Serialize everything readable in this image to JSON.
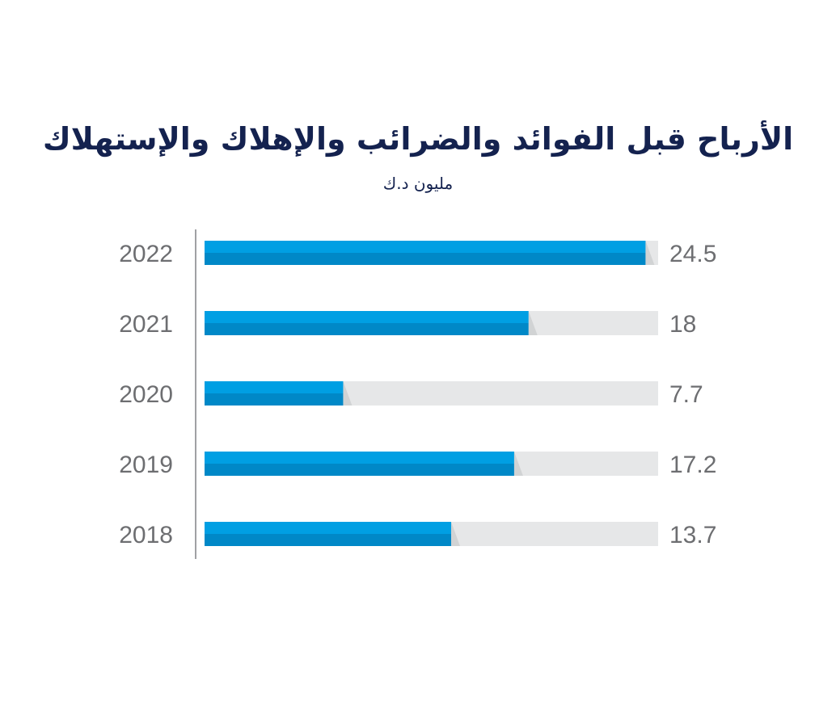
{
  "title": "الأرباح قبل الفوائد والضرائب والإهلاك والإستهلاك",
  "subtitle": "مليون د.ك",
  "colors": {
    "title": "#14224f",
    "bar_top": "#009fe3",
    "bar_bottom": "#0088c7",
    "track": "#e6e7e8",
    "track_shade": "#d1d3d4",
    "label": "#6d6e71",
    "axis": "#808285"
  },
  "chart_data": {
    "type": "bar",
    "orientation": "horizontal",
    "title": "الأرباح قبل الفوائد والضرائب والإهلاك والإستهلاك",
    "subtitle": "مليون د.ك",
    "categories": [
      "2022",
      "2021",
      "2020",
      "2019",
      "2018"
    ],
    "values": [
      24.5,
      18,
      7.7,
      17.2,
      13.7
    ],
    "value_labels": [
      "24.5",
      "18",
      "7.7",
      "17.2",
      "13.7"
    ],
    "xlim": [
      0,
      25.2
    ],
    "grid": false,
    "legend": "none"
  }
}
